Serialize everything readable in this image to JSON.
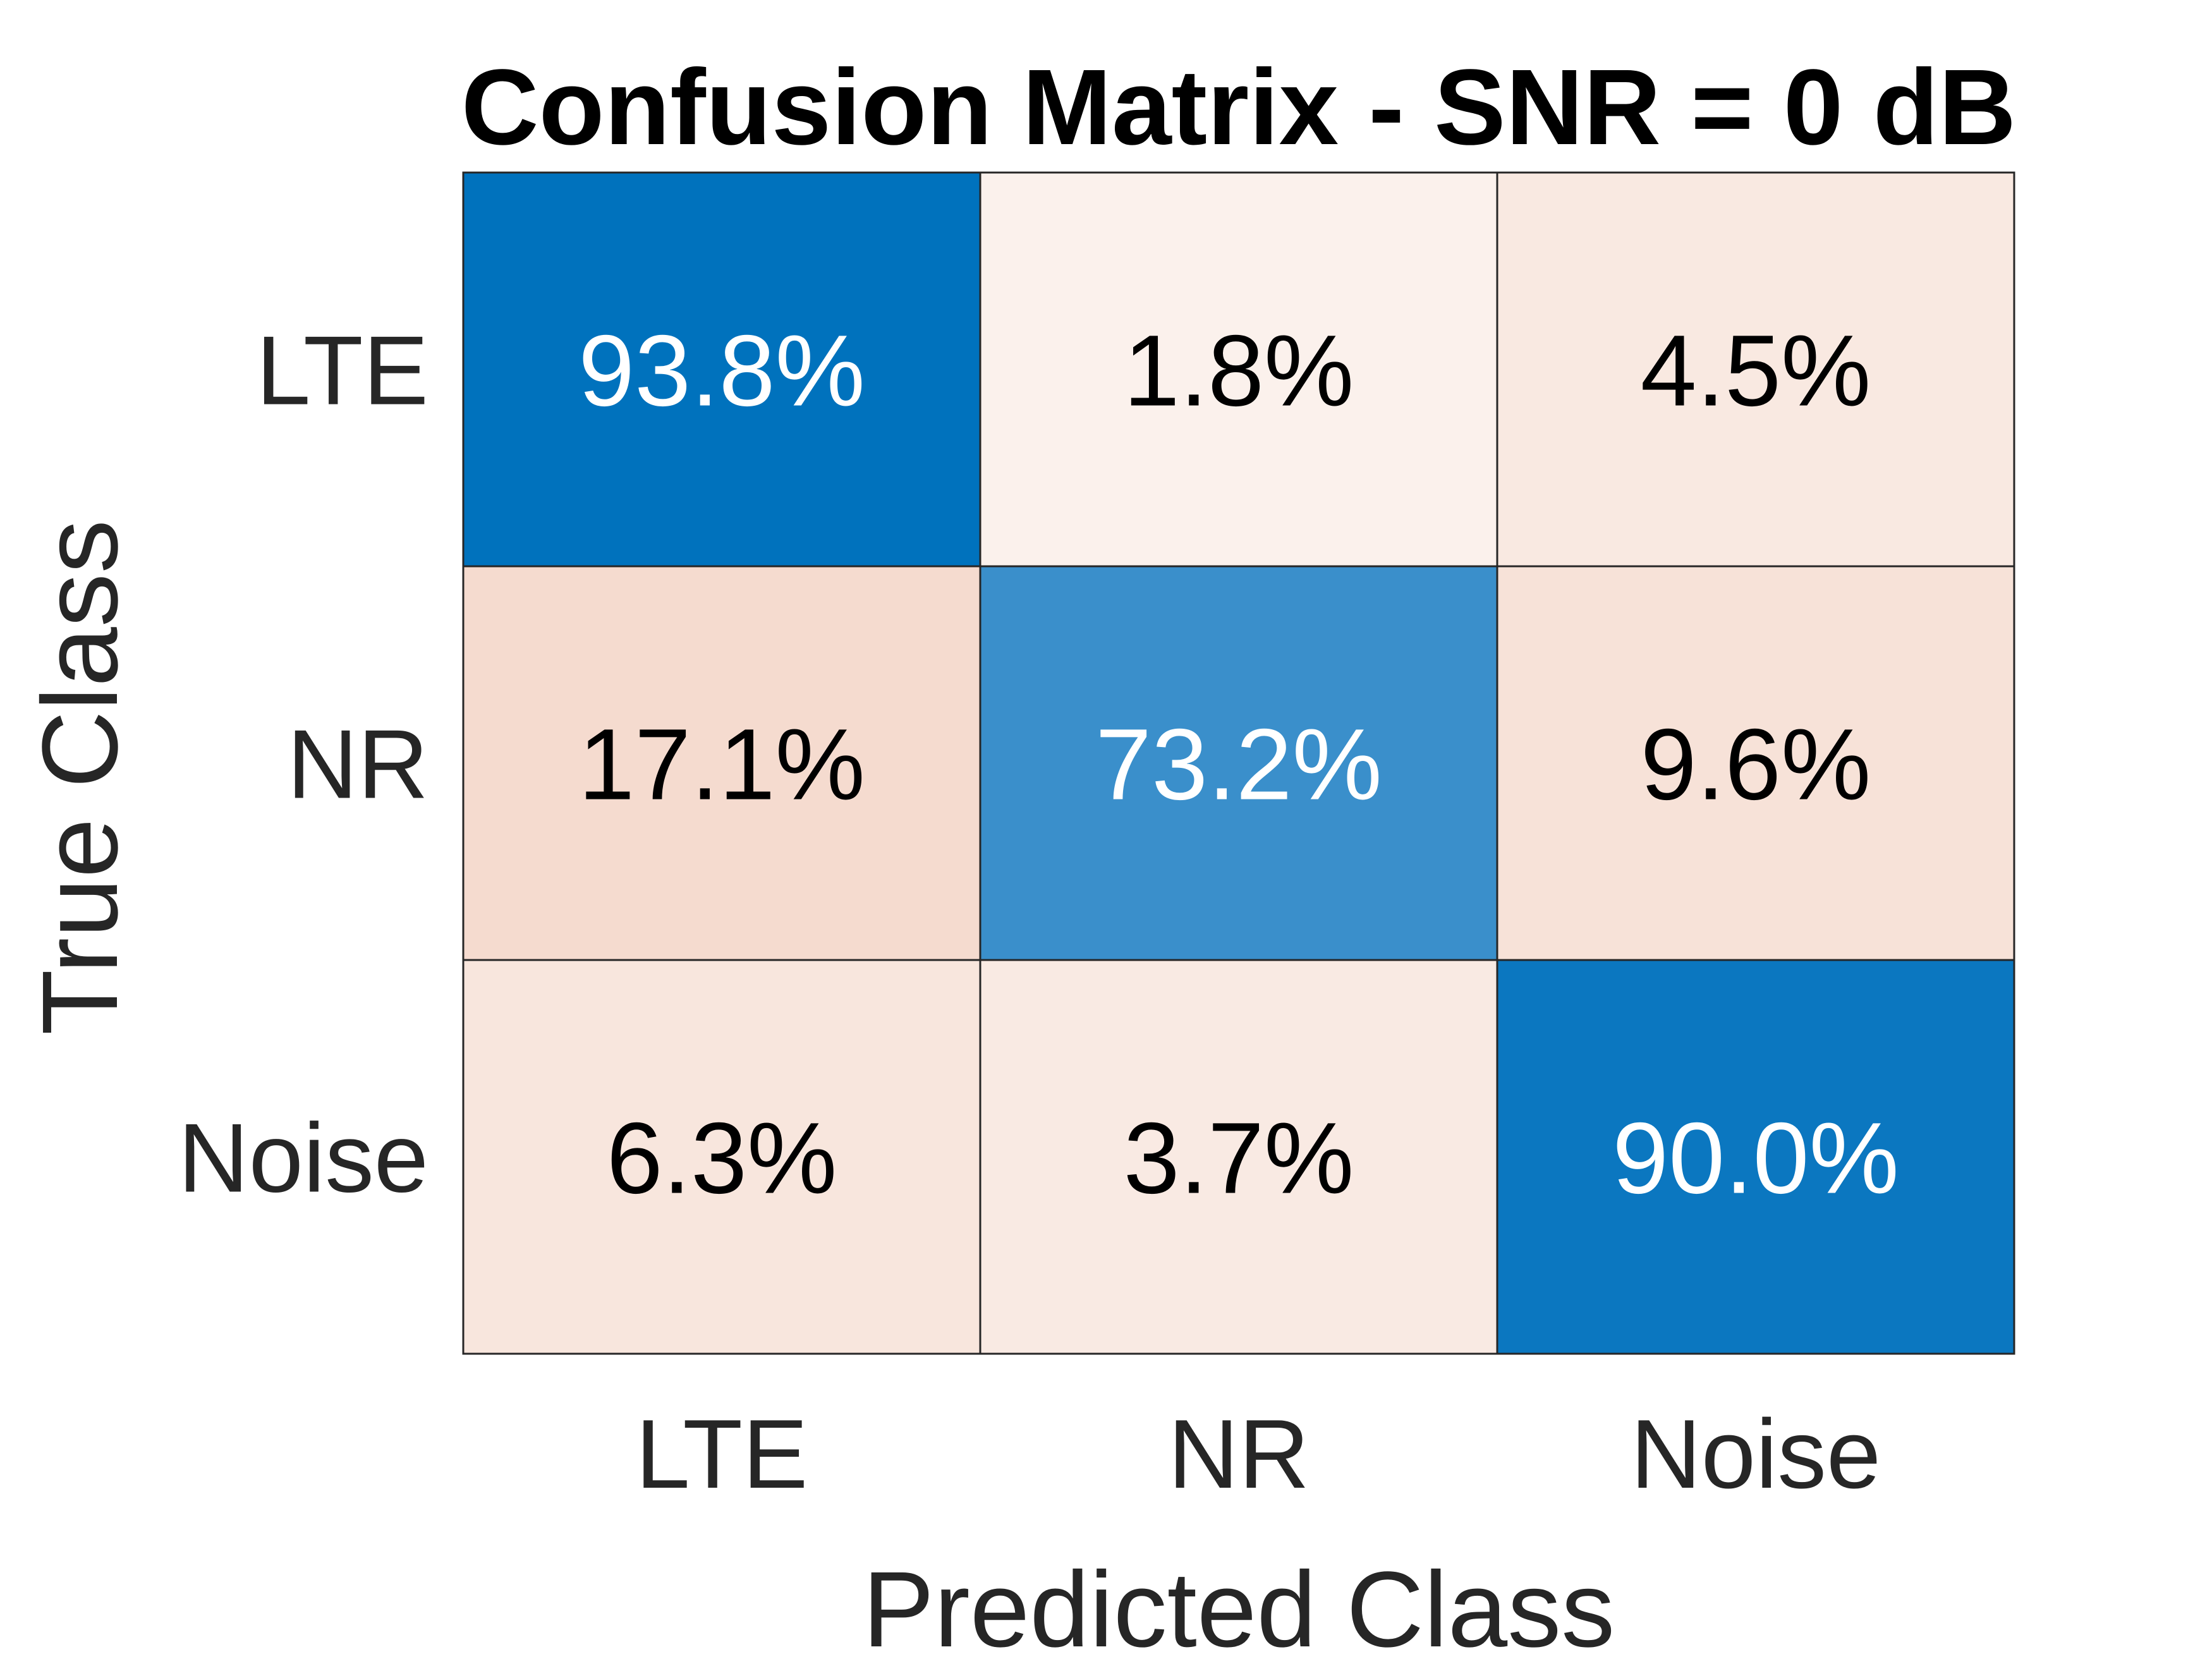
{
  "chart_data": {
    "type": "heatmap",
    "title": "Confusion Matrix - SNR = 0 dB",
    "xlabel": "Predicted Class",
    "ylabel": "True Class",
    "x_categories": [
      "LTE",
      "NR",
      "Noise"
    ],
    "y_categories": [
      "LTE",
      "NR",
      "Noise"
    ],
    "values": [
      [
        93.8,
        1.8,
        4.5
      ],
      [
        17.1,
        73.2,
        9.6
      ],
      [
        6.3,
        3.7,
        90.0
      ]
    ],
    "cell_labels": [
      [
        "93.8%",
        "1.8%",
        "4.5%"
      ],
      [
        "17.1%",
        "73.2%",
        "9.6%"
      ],
      [
        "6.3%",
        "3.7%",
        "90.0%"
      ]
    ],
    "colors": {
      "diagonal_high": "#0072bd",
      "diagonal_mid": "#3a8fcb",
      "off_diagonal_high": "#f5dbcf",
      "off_diagonal_low": "#fbf1ec",
      "text_dark": "#000000",
      "text_light": "#ffffff",
      "grid": "#262626"
    }
  }
}
